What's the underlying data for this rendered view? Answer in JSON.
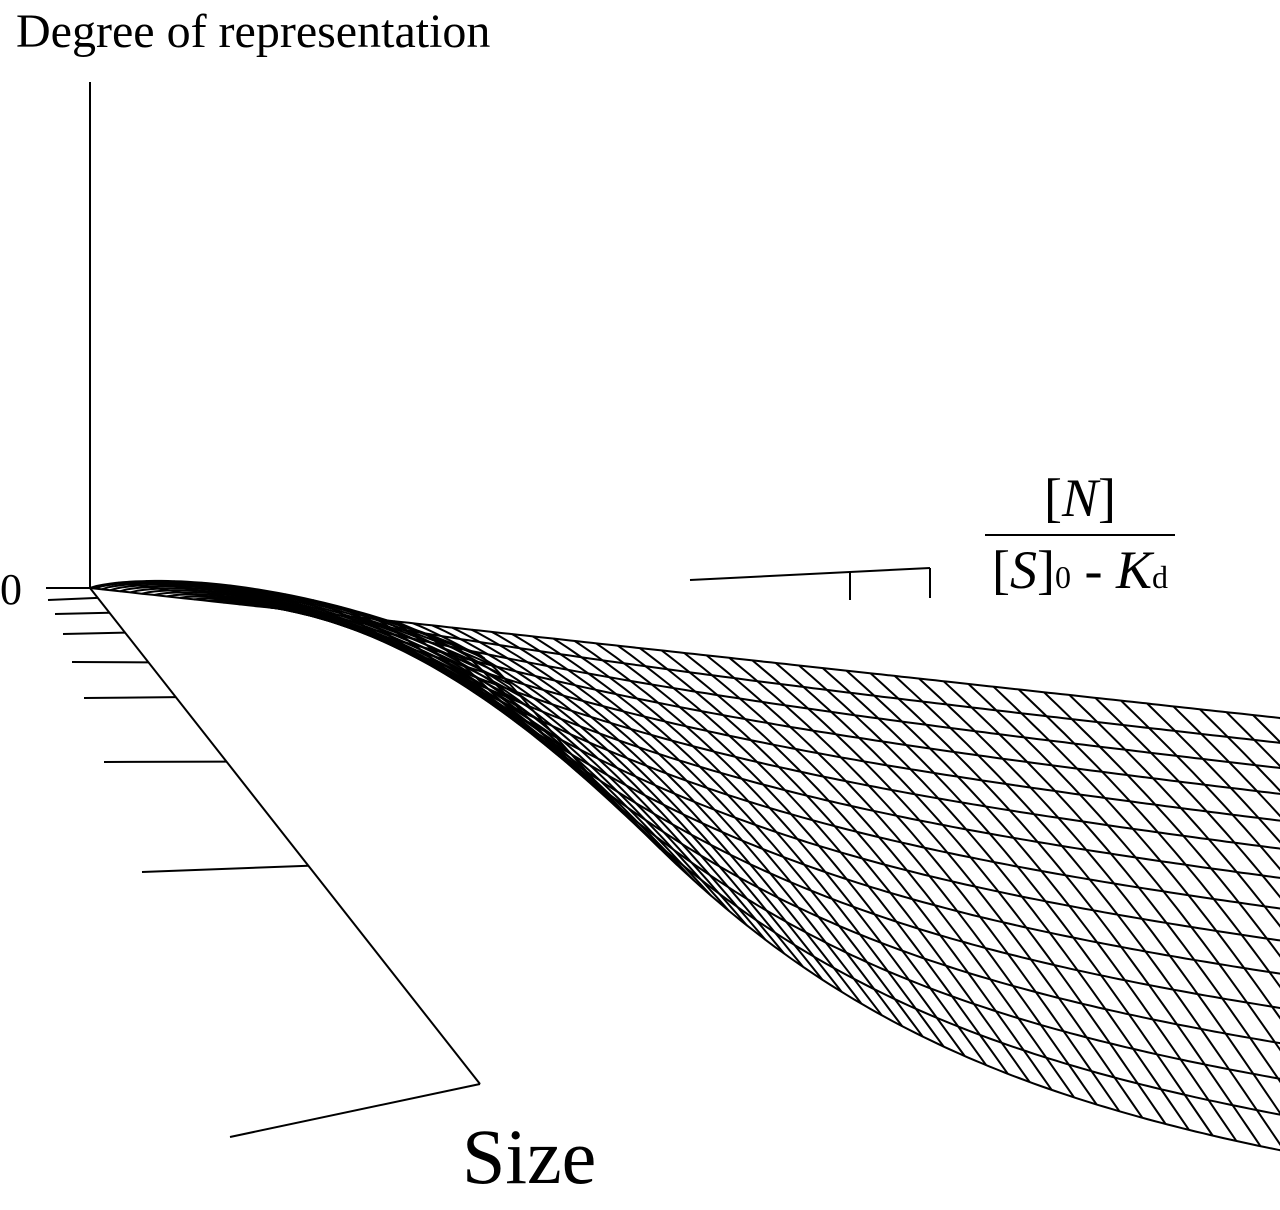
{
  "diagram": {
    "y_axis_label": "Degree of representation",
    "zero_label": "0",
    "x_axis_label": "Size",
    "depth_axis_label": {
      "numerator": [
        "[",
        "N",
        "]"
      ],
      "denominator": [
        "[",
        "S",
        "]",
        "0",
        " - ",
        "K",
        "d"
      ]
    }
  }
}
